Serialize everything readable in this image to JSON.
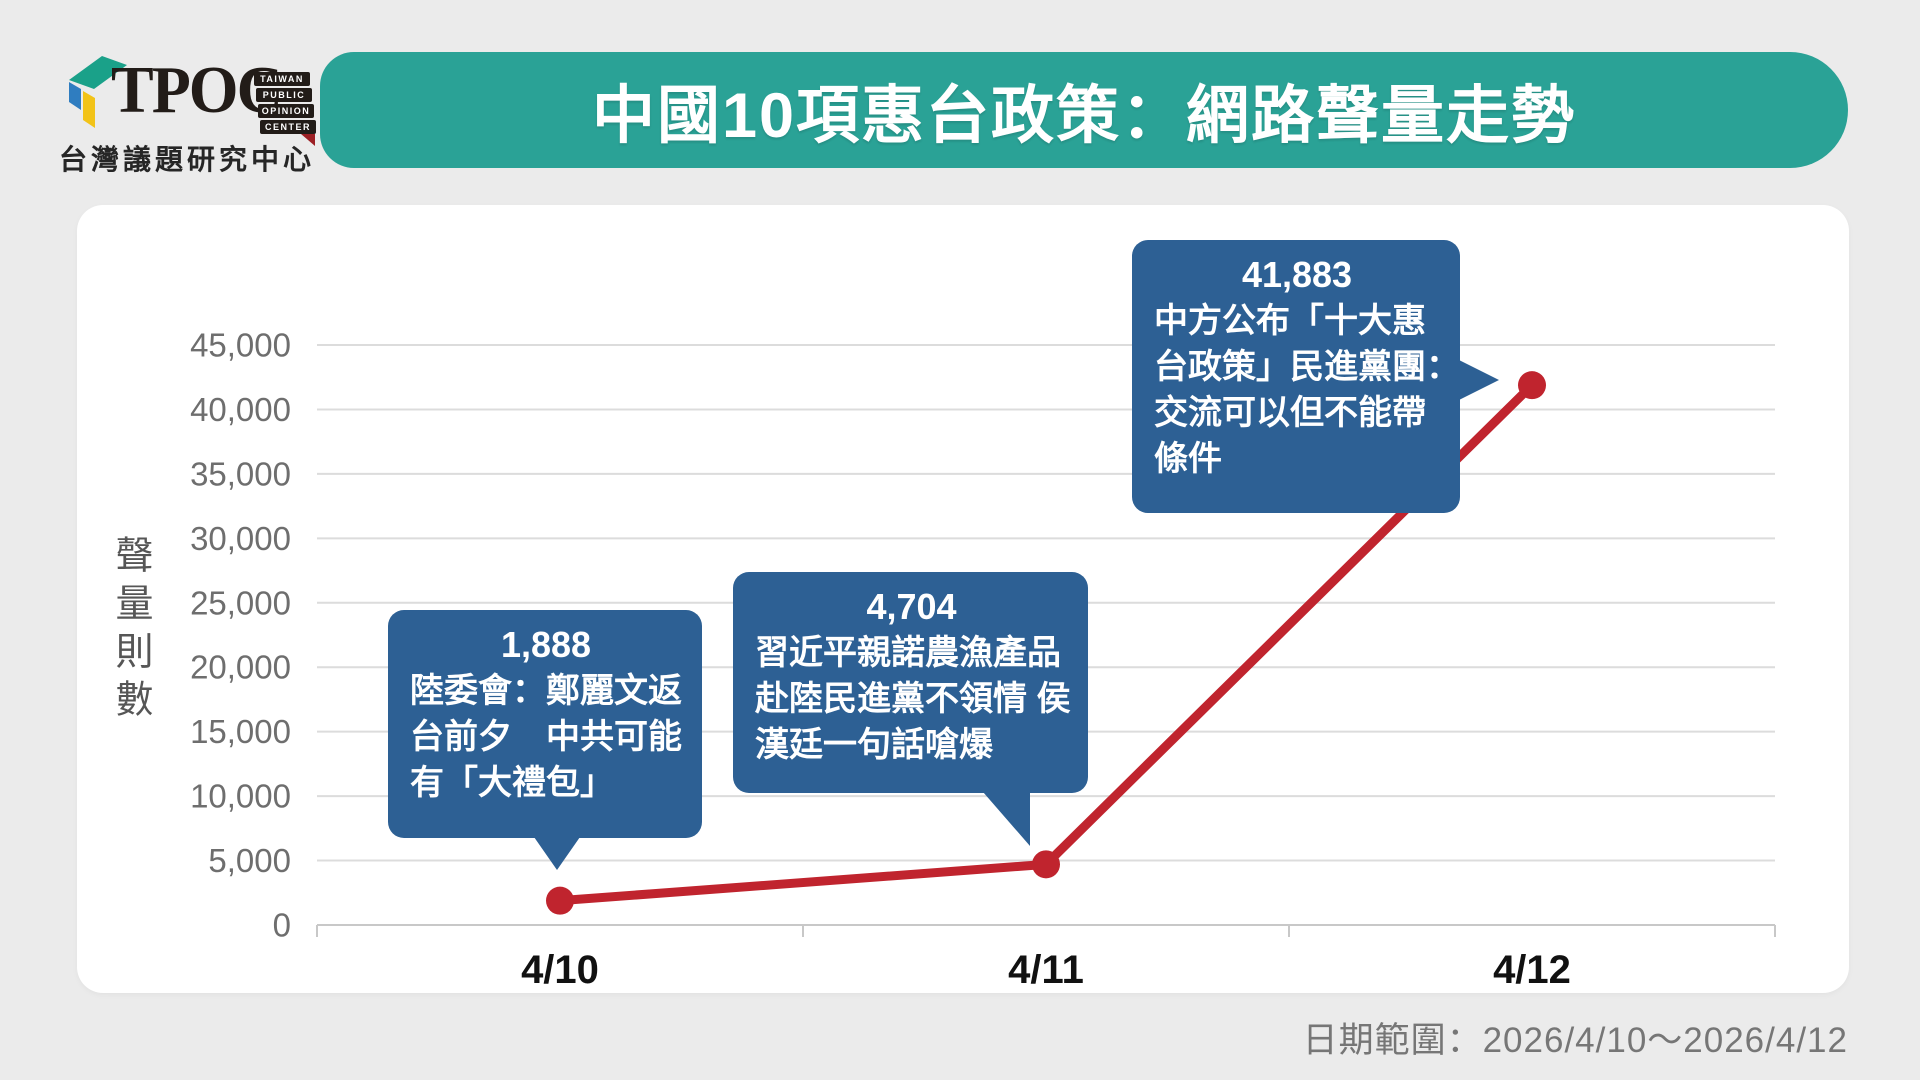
{
  "logo": {
    "brand": "TPOC",
    "stack": [
      "TAIWAN",
      "PUBLIC",
      "OPINION",
      "CENTER"
    ],
    "subtitle": "台灣議題研究中心",
    "colors": {
      "teal": "#1aa189",
      "blue": "#2f7dc0",
      "yellow": "#f2c318",
      "dark": "#221c18",
      "red": "#9c1f24"
    }
  },
  "banner": {
    "title": "中國10項惠台政策：網路聲量走勢",
    "background": "#2aa296"
  },
  "chart_data": {
    "type": "line",
    "title": "中國10項惠台政策：網路聲量走勢",
    "categories": [
      "4/10",
      "4/11",
      "4/12"
    ],
    "values": [
      1888,
      4704,
      41883
    ],
    "value_labels": [
      "1,888",
      "4,704",
      "41,883"
    ],
    "ylabel": "聲量則數",
    "xlabel": "",
    "ylim": [
      0,
      45000
    ],
    "ytick_step": 5000,
    "ytick_labels": [
      "0",
      "5,000",
      "10,000",
      "15,000",
      "20,000",
      "25,000",
      "30,000",
      "35,000",
      "40,000",
      "45,000"
    ],
    "grid": true,
    "legend": "none",
    "line_color": "#c0242e",
    "callout_color": "#2d6094",
    "annotations": [
      {
        "value_label": "1,888",
        "lines": [
          "陸委會：鄭麗文返",
          "台前夕　中共可能",
          "有「大禮包」"
        ]
      },
      {
        "value_label": "4,704",
        "lines": [
          "習近平親諾農漁產品",
          "赴陸民進黨不領情 侯",
          "漢廷一句話嗆爆"
        ]
      },
      {
        "value_label": "41,883",
        "lines": [
          "中方公布「十大惠",
          "台政策」民進黨團：",
          "交流可以但不能帶",
          "條件"
        ]
      }
    ]
  },
  "footer": {
    "date_range": "日期範圍：2026/4/10～2026/4/12"
  }
}
